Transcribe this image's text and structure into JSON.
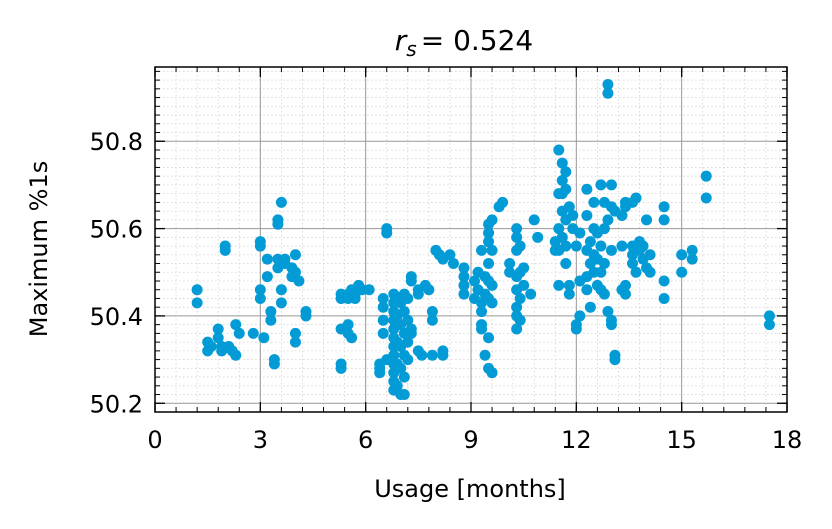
{
  "chart_data": {
    "type": "scatter",
    "title_symbol": "r",
    "title_subscript": "s",
    "title_value": "= 0.524",
    "xlabel": "Usage [months]",
    "ylabel": "Maximum %1s",
    "xlim": [
      0,
      18
    ],
    "ylim": [
      50.18,
      50.97
    ],
    "xticks": [
      0,
      3,
      6,
      9,
      12,
      15,
      18
    ],
    "xtick_labels": [
      "0",
      "3",
      "6",
      "9",
      "12",
      "15",
      "18"
    ],
    "yticks": [
      50.2,
      50.4,
      50.6,
      50.8
    ],
    "ytick_labels": [
      "50.2",
      "50.4",
      "50.6",
      "50.8"
    ],
    "grid": true,
    "point_color": "#039bd6",
    "points": [
      [
        1.2,
        50.46
      ],
      [
        1.2,
        50.43
      ],
      [
        1.5,
        50.34
      ],
      [
        1.5,
        50.32
      ],
      [
        1.6,
        50.33
      ],
      [
        1.8,
        50.37
      ],
      [
        1.8,
        50.35
      ],
      [
        1.9,
        50.33
      ],
      [
        1.9,
        50.32
      ],
      [
        2.0,
        50.56
      ],
      [
        2.0,
        50.55
      ],
      [
        2.1,
        50.33
      ],
      [
        2.2,
        50.32
      ],
      [
        2.3,
        50.38
      ],
      [
        2.3,
        50.31
      ],
      [
        2.4,
        50.36
      ],
      [
        2.8,
        50.36
      ],
      [
        3.0,
        50.57
      ],
      [
        3.0,
        50.56
      ],
      [
        3.0,
        50.46
      ],
      [
        3.0,
        50.44
      ],
      [
        3.1,
        50.35
      ],
      [
        3.2,
        50.53
      ],
      [
        3.2,
        50.49
      ],
      [
        3.3,
        50.41
      ],
      [
        3.3,
        50.39
      ],
      [
        3.4,
        50.3
      ],
      [
        3.4,
        50.29
      ],
      [
        3.5,
        50.62
      ],
      [
        3.5,
        50.61
      ],
      [
        3.5,
        50.53
      ],
      [
        3.5,
        50.51
      ],
      [
        3.6,
        50.66
      ],
      [
        3.6,
        50.46
      ],
      [
        3.6,
        50.43
      ],
      [
        3.7,
        50.53
      ],
      [
        3.7,
        50.52
      ],
      [
        3.9,
        50.51
      ],
      [
        3.9,
        50.49
      ],
      [
        4.0,
        50.54
      ],
      [
        4.0,
        50.5
      ],
      [
        4.0,
        50.36
      ],
      [
        4.0,
        50.34
      ],
      [
        4.1,
        50.48
      ],
      [
        4.3,
        50.41
      ],
      [
        4.3,
        50.4
      ],
      [
        5.3,
        50.45
      ],
      [
        5.3,
        50.44
      ],
      [
        5.3,
        50.37
      ],
      [
        5.3,
        50.29
      ],
      [
        5.3,
        50.28
      ],
      [
        5.5,
        50.45
      ],
      [
        5.5,
        50.44
      ],
      [
        5.5,
        50.38
      ],
      [
        5.5,
        50.36
      ],
      [
        5.6,
        50.46
      ],
      [
        5.6,
        50.35
      ],
      [
        5.7,
        50.45
      ],
      [
        5.7,
        50.44
      ],
      [
        5.8,
        50.47
      ],
      [
        5.9,
        50.46
      ],
      [
        6.1,
        50.46
      ],
      [
        6.4,
        50.29
      ],
      [
        6.4,
        50.28
      ],
      [
        6.4,
        50.27
      ],
      [
        6.5,
        50.44
      ],
      [
        6.5,
        50.42
      ],
      [
        6.5,
        50.39
      ],
      [
        6.5,
        50.36
      ],
      [
        6.6,
        50.6
      ],
      [
        6.6,
        50.59
      ],
      [
        6.6,
        50.3
      ],
      [
        6.8,
        50.45
      ],
      [
        6.8,
        50.43
      ],
      [
        6.8,
        50.41
      ],
      [
        6.8,
        50.39
      ],
      [
        6.8,
        50.37
      ],
      [
        6.8,
        50.35
      ],
      [
        6.8,
        50.33
      ],
      [
        6.8,
        50.31
      ],
      [
        6.8,
        50.29
      ],
      [
        6.8,
        50.27
      ],
      [
        6.8,
        50.25
      ],
      [
        6.8,
        50.23
      ],
      [
        6.9,
        50.44
      ],
      [
        6.9,
        50.4
      ],
      [
        6.9,
        50.34
      ],
      [
        6.9,
        50.29
      ],
      [
        6.9,
        50.24
      ],
      [
        7.0,
        50.43
      ],
      [
        7.0,
        50.38
      ],
      [
        7.0,
        50.33
      ],
      [
        7.0,
        50.28
      ],
      [
        7.0,
        50.22
      ],
      [
        7.1,
        50.45
      ],
      [
        7.1,
        50.41
      ],
      [
        7.1,
        50.36
      ],
      [
        7.1,
        50.31
      ],
      [
        7.1,
        50.26
      ],
      [
        7.1,
        50.22
      ],
      [
        7.2,
        50.44
      ],
      [
        7.2,
        50.39
      ],
      [
        7.2,
        50.34
      ],
      [
        7.2,
        50.3
      ],
      [
        7.3,
        50.49
      ],
      [
        7.3,
        50.48
      ],
      [
        7.3,
        50.37
      ],
      [
        7.3,
        50.36
      ],
      [
        7.5,
        50.46
      ],
      [
        7.5,
        50.45
      ],
      [
        7.5,
        50.32
      ],
      [
        7.6,
        50.31
      ],
      [
        7.7,
        50.47
      ],
      [
        7.8,
        50.46
      ],
      [
        7.9,
        50.41
      ],
      [
        7.9,
        50.39
      ],
      [
        7.9,
        50.31
      ],
      [
        8.0,
        50.55
      ],
      [
        8.1,
        50.54
      ],
      [
        8.2,
        50.53
      ],
      [
        8.2,
        50.32
      ],
      [
        8.2,
        50.31
      ],
      [
        8.4,
        50.54
      ],
      [
        8.5,
        50.52
      ],
      [
        8.8,
        50.51
      ],
      [
        8.8,
        50.49
      ],
      [
        8.8,
        50.47
      ],
      [
        8.8,
        50.45
      ],
      [
        9.1,
        50.48
      ],
      [
        9.1,
        50.44
      ],
      [
        9.2,
        50.5
      ],
      [
        9.2,
        50.46
      ],
      [
        9.3,
        50.55
      ],
      [
        9.3,
        50.43
      ],
      [
        9.3,
        50.41
      ],
      [
        9.3,
        50.38
      ],
      [
        9.3,
        50.37
      ],
      [
        9.4,
        50.49
      ],
      [
        9.4,
        50.45
      ],
      [
        9.4,
        50.31
      ],
      [
        9.5,
        50.61
      ],
      [
        9.5,
        50.59
      ],
      [
        9.5,
        50.57
      ],
      [
        9.5,
        50.52
      ],
      [
        9.5,
        50.48
      ],
      [
        9.5,
        50.44
      ],
      [
        9.5,
        50.35
      ],
      [
        9.5,
        50.28
      ],
      [
        9.6,
        50.62
      ],
      [
        9.6,
        50.55
      ],
      [
        9.6,
        50.47
      ],
      [
        9.6,
        50.43
      ],
      [
        9.6,
        50.27
      ],
      [
        9.8,
        50.65
      ],
      [
        9.9,
        50.66
      ],
      [
        10.1,
        50.52
      ],
      [
        10.1,
        50.5
      ],
      [
        10.3,
        50.6
      ],
      [
        10.3,
        50.58
      ],
      [
        10.3,
        50.55
      ],
      [
        10.3,
        50.49
      ],
      [
        10.3,
        50.46
      ],
      [
        10.3,
        50.42
      ],
      [
        10.3,
        50.4
      ],
      [
        10.3,
        50.37
      ],
      [
        10.4,
        50.56
      ],
      [
        10.4,
        50.5
      ],
      [
        10.4,
        50.44
      ],
      [
        10.4,
        50.39
      ],
      [
        10.5,
        50.51
      ],
      [
        10.5,
        50.47
      ],
      [
        10.7,
        50.45
      ],
      [
        10.8,
        50.62
      ],
      [
        10.9,
        50.58
      ],
      [
        11.4,
        50.55
      ],
      [
        11.4,
        50.57
      ],
      [
        11.5,
        50.78
      ],
      [
        11.5,
        50.68
      ],
      [
        11.5,
        50.6
      ],
      [
        11.5,
        50.55
      ],
      [
        11.5,
        50.47
      ],
      [
        11.6,
        50.75
      ],
      [
        11.6,
        50.71
      ],
      [
        11.6,
        50.68
      ],
      [
        11.6,
        50.64
      ],
      [
        11.6,
        50.58
      ],
      [
        11.7,
        50.73
      ],
      [
        11.7,
        50.69
      ],
      [
        11.7,
        50.62
      ],
      [
        11.7,
        50.56
      ],
      [
        11.7,
        50.52
      ],
      [
        11.8,
        50.65
      ],
      [
        11.8,
        50.47
      ],
      [
        11.8,
        50.45
      ],
      [
        11.9,
        50.63
      ],
      [
        11.9,
        50.6
      ],
      [
        12.0,
        50.56
      ],
      [
        12.0,
        50.38
      ],
      [
        12.0,
        50.37
      ],
      [
        12.1,
        50.59
      ],
      [
        12.1,
        50.48
      ],
      [
        12.1,
        50.4
      ],
      [
        12.3,
        50.69
      ],
      [
        12.3,
        50.63
      ],
      [
        12.3,
        50.55
      ],
      [
        12.3,
        50.49
      ],
      [
        12.3,
        50.46
      ],
      [
        12.4,
        50.57
      ],
      [
        12.4,
        50.52
      ],
      [
        12.4,
        50.42
      ],
      [
        12.5,
        50.66
      ],
      [
        12.5,
        50.6
      ],
      [
        12.5,
        50.54
      ],
      [
        12.5,
        50.5
      ],
      [
        12.6,
        50.59
      ],
      [
        12.6,
        50.53
      ],
      [
        12.6,
        50.47
      ],
      [
        12.7,
        50.7
      ],
      [
        12.7,
        50.56
      ],
      [
        12.7,
        50.5
      ],
      [
        12.7,
        50.46
      ],
      [
        12.8,
        50.66
      ],
      [
        12.8,
        50.6
      ],
      [
        12.8,
        50.52
      ],
      [
        12.8,
        50.45
      ],
      [
        12.9,
        50.93
      ],
      [
        12.9,
        50.91
      ],
      [
        12.9,
        50.62
      ],
      [
        12.9,
        50.41
      ],
      [
        13.0,
        50.7
      ],
      [
        13.0,
        50.65
      ],
      [
        13.0,
        50.55
      ],
      [
        13.0,
        50.39
      ],
      [
        13.0,
        50.38
      ],
      [
        13.1,
        50.64
      ],
      [
        13.1,
        50.31
      ],
      [
        13.1,
        50.3
      ],
      [
        13.3,
        50.63
      ],
      [
        13.3,
        50.56
      ],
      [
        13.3,
        50.46
      ],
      [
        13.4,
        50.66
      ],
      [
        13.4,
        50.65
      ],
      [
        13.4,
        50.47
      ],
      [
        13.4,
        50.45
      ],
      [
        13.6,
        50.66
      ],
      [
        13.6,
        50.56
      ],
      [
        13.6,
        50.54
      ],
      [
        13.6,
        50.52
      ],
      [
        13.7,
        50.67
      ],
      [
        13.7,
        50.5
      ],
      [
        13.8,
        50.57
      ],
      [
        13.8,
        50.55
      ],
      [
        13.9,
        50.56
      ],
      [
        13.9,
        50.53
      ],
      [
        14.0,
        50.62
      ],
      [
        14.0,
        50.51
      ],
      [
        14.1,
        50.54
      ],
      [
        14.1,
        50.5
      ],
      [
        14.5,
        50.65
      ],
      [
        14.5,
        50.62
      ],
      [
        14.5,
        50.48
      ],
      [
        14.5,
        50.44
      ],
      [
        15.0,
        50.54
      ],
      [
        15.0,
        50.5
      ],
      [
        15.3,
        50.55
      ],
      [
        15.3,
        50.53
      ],
      [
        15.7,
        50.72
      ],
      [
        15.7,
        50.67
      ],
      [
        17.5,
        50.4
      ],
      [
        17.5,
        50.38
      ]
    ]
  }
}
